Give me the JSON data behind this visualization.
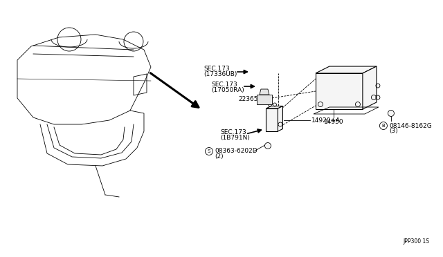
{
  "bg_color": "#ffffff",
  "line_color": "#000000",
  "fig_width": 6.4,
  "fig_height": 3.72,
  "diagram_id": "JPP300 1S",
  "labels": {
    "part1": "08363-6202D",
    "part1_qty": "(2)",
    "part1_circle": "S",
    "part2_sec1": "SEC.173",
    "part2_sec1b": "(1B791N)",
    "part3": "14920+A",
    "part4": "22365",
    "part5_sec1": "SEC.173",
    "part5_sec1b": "(17050RA)",
    "part6_sec1": "SEC.173",
    "part6_sec1b": "(17336UB)",
    "part7": "14950",
    "part8": "08146-8162G",
    "part8_qty": "(3)",
    "part8_circle": "B"
  }
}
